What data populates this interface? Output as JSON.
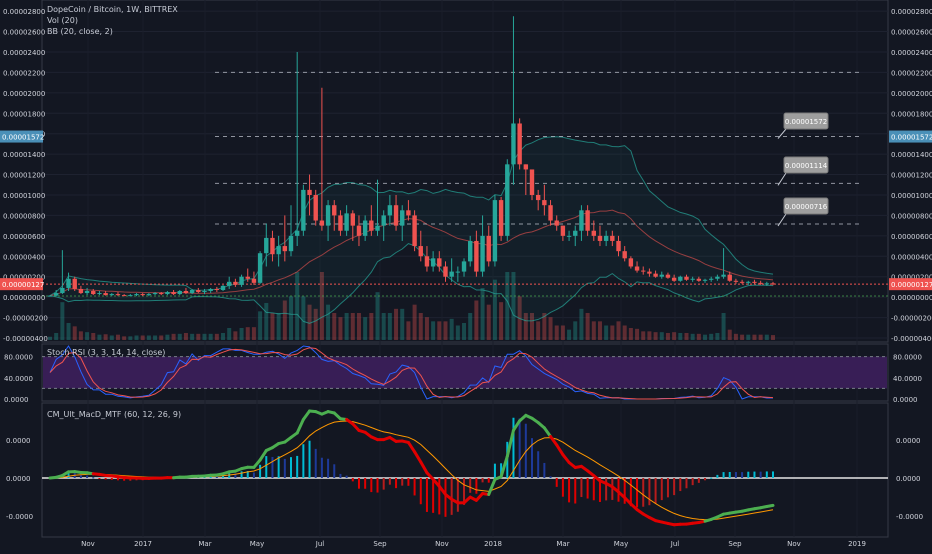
{
  "header": {
    "symbol_title": "DopeCoin / Bitcoin, 1W, BITTREX",
    "vol_label": "Vol (20)",
    "bb_label": "BB (20, close, 2)"
  },
  "stoch_label": "Stoch RSI (3, 3, 14, 14, close)",
  "macd_label": "CM_Ult_MacD_MTF (60, 12, 26, 9)",
  "price_axis": {
    "ticks": [
      "0.00002800",
      "0.00002600",
      "0.00002400",
      "0.00002200",
      "0.00002000",
      "0.00001800",
      "0.00001600",
      "0.00001400",
      "0.00001200",
      "0.00001000",
      "0.00000800",
      "0.00000600",
      "0.00000400",
      "0.00000200",
      "0.00000000",
      "-0.00000200",
      "-0.00000400"
    ],
    "tick_values": [
      2.8e-05,
      2.6e-05,
      2.4e-05,
      2.2e-05,
      2e-05,
      1.8e-05,
      1.6e-05,
      1.4e-05,
      1.2e-05,
      1e-05,
      8e-06,
      6e-06,
      4e-06,
      2e-06,
      0,
      -2e-06,
      -4e-06
    ],
    "marker_label": "0.00001572",
    "marker_value": 1.572e-05,
    "last_label": "0.00000127",
    "last_value": 1.27e-06
  },
  "stoch_axis": {
    "ticks": [
      "80.0000",
      "40.0000",
      "0.0000"
    ],
    "tick_values": [
      80,
      40,
      0
    ]
  },
  "macd_axis": {
    "ticks": [
      "0.0000",
      "0.0000",
      "-0.0000"
    ]
  },
  "time_axis": {
    "labels": [
      "Nov",
      "2017",
      "Mar",
      "May",
      "Jul",
      "Sep",
      "Nov",
      "2018",
      "Mar",
      "May",
      "Jul",
      "Sep",
      "Nov",
      "2019"
    ]
  },
  "annotations": [
    {
      "label": "0.00001572",
      "value": 1.572e-05
    },
    {
      "label": "0.00001114",
      "value": 1.114e-05
    },
    {
      "label": "0.00000716",
      "value": 7.16e-06
    }
  ],
  "colors": {
    "up": "#26a69a",
    "down": "#ef5350",
    "bb": "#26a69a",
    "stoch_k": "#2962ff",
    "stoch_d": "#ef5350",
    "macd_up": "#4caf50",
    "macd_down": "#e00000",
    "signal": "#ff9800",
    "marker": "#4a90b8",
    "last": "#ef5350"
  },
  "chart_data": {
    "type": "candlestick",
    "title": "DopeCoin / Bitcoin, 1W, BITTREX",
    "x_range": [
      "2016-10",
      "2019-01"
    ],
    "ylim": [
      -4e-06,
      2.85e-05
    ],
    "series": [
      {
        "name": "DopeCoin / Bitcoin",
        "ohlc": [
          [
            1e-07,
            2e-07,
            5e-08,
            1.5e-07
          ],
          [
            1.5e-07,
            7e-07,
            1e-07,
            4e-07
          ],
          [
            4e-07,
            4.6e-06,
            3e-07,
            9e-07
          ],
          [
            9e-07,
            2.4e-06,
            6e-07,
            1.8e-06
          ],
          [
            1.8e-06,
            2e-06,
            6e-07,
            8e-07
          ],
          [
            8e-07,
            1.1e-06,
            3e-07,
            4e-07
          ],
          [
            4e-07,
            9e-07,
            2e-07,
            6e-07
          ],
          [
            6e-07,
            8e-07,
            2e-07,
            3e-07
          ],
          [
            3e-07,
            6e-07,
            2e-07,
            4e-07
          ],
          [
            4e-07,
            6e-07,
            1.5e-07,
            2e-07
          ],
          [
            2e-07,
            4e-07,
            1e-07,
            3e-07
          ],
          [
            3e-07,
            5e-07,
            1e-07,
            2e-07
          ],
          [
            2e-07,
            3e-07,
            1e-07,
            1.5e-07
          ],
          [
            1.5e-07,
            3e-07,
            1e-07,
            2e-07
          ],
          [
            2e-07,
            4e-07,
            1e-07,
            3e-07
          ],
          [
            3e-07,
            4e-07,
            1e-07,
            2e-07
          ],
          [
            2e-07,
            4e-07,
            1e-07,
            3e-07
          ],
          [
            3e-07,
            5e-07,
            2e-07,
            4e-07
          ],
          [
            4e-07,
            5e-07,
            2e-07,
            3e-07
          ],
          [
            3e-07,
            6e-07,
            2e-07,
            5e-07
          ],
          [
            5e-07,
            7e-07,
            2e-07,
            3e-07
          ],
          [
            3e-07,
            7e-07,
            2e-07,
            6e-07
          ],
          [
            6e-07,
            9e-07,
            3e-07,
            4e-07
          ],
          [
            4e-07,
            8e-07,
            3e-07,
            7e-07
          ],
          [
            7e-07,
            9e-07,
            4e-07,
            5e-07
          ],
          [
            5e-07,
            8e-07,
            3e-07,
            6e-07
          ],
          [
            6e-07,
            9e-07,
            4e-07,
            8e-07
          ],
          [
            8e-07,
            1e-06,
            5e-07,
            7e-07
          ],
          [
            7e-07,
            1.2e-06,
            6e-07,
            1.1e-06
          ],
          [
            1.1e-06,
            2e-06,
            8e-07,
            1.5e-06
          ],
          [
            1.5e-06,
            1.8e-06,
            1e-06,
            1.2e-06
          ],
          [
            1.2e-06,
            2.2e-06,
            1e-06,
            2e-06
          ],
          [
            2e-06,
            2.8e-06,
            1.5e-06,
            1.8e-06
          ],
          [
            1.8e-06,
            2.5e-06,
            1.2e-06,
            1.4e-06
          ],
          [
            1.4e-06,
            4.5e-06,
            1.3e-06,
            4.3e-06
          ],
          [
            4.3e-06,
            7.2e-06,
            3e-06,
            5.8e-06
          ],
          [
            5.8e-06,
            6.5e-06,
            3.5e-06,
            4.2e-06
          ],
          [
            4.2e-06,
            6e-06,
            3e-06,
            5e-06
          ],
          [
            5e-06,
            8e-06,
            3.5e-06,
            4.5e-06
          ],
          [
            4.5e-06,
            9e-06,
            4e-06,
            6e-06
          ],
          [
            6e-06,
            2.4e-05,
            5e-06,
            6.5e-06
          ],
          [
            6.5e-06,
            1.1e-05,
            6e-06,
            1.05e-05
          ],
          [
            1.05e-05,
            1.2e-05,
            8e-06,
            1e-05
          ],
          [
            1e-05,
            1.05e-05,
            7e-06,
            7.5e-06
          ],
          [
            7.5e-06,
            2.05e-05,
            6.5e-06,
            7e-06
          ],
          [
            7e-06,
            9.5e-06,
            5.5e-06,
            9e-06
          ],
          [
            9e-06,
            9.5e-06,
            6.5e-06,
            8e-06
          ],
          [
            8e-06,
            8.5e-06,
            6e-06,
            6.5e-06
          ],
          [
            6.5e-06,
            9e-06,
            6e-06,
            8.2e-06
          ],
          [
            8.2e-06,
            8.5e-06,
            5.5e-06,
            7e-06
          ],
          [
            7e-06,
            8e-06,
            5e-06,
            6e-06
          ],
          [
            6e-06,
            8e-06,
            5.5e-06,
            7.5e-06
          ],
          [
            7.5e-06,
            9e-06,
            6e-06,
            6.5e-06
          ],
          [
            6.5e-06,
            1.15e-05,
            6e-06,
            7e-06
          ],
          [
            7e-06,
            8.5e-06,
            5.5e-06,
            8e-06
          ],
          [
            8e-06,
            1e-05,
            7e-06,
            9e-06
          ],
          [
            9e-06,
            1e-05,
            6.5e-06,
            7e-06
          ],
          [
            7e-06,
            9e-06,
            5.5e-06,
            8.5e-06
          ],
          [
            8.5e-06,
            9.5e-06,
            7.5e-06,
            8e-06
          ],
          [
            8e-06,
            8.5e-06,
            4.5e-06,
            5e-06
          ],
          [
            5e-06,
            6.5e-06,
            3.5e-06,
            4e-06
          ],
          [
            4e-06,
            5e-06,
            2.5e-06,
            3e-06
          ],
          [
            3e-06,
            4.5e-06,
            2.5e-06,
            3.8e-06
          ],
          [
            3.8e-06,
            4.5e-06,
            2.5e-06,
            3e-06
          ],
          [
            3e-06,
            3.5e-06,
            1.5e-06,
            2e-06
          ],
          [
            2e-06,
            3.8e-06,
            1.5e-06,
            2.5e-06
          ],
          [
            2.5e-06,
            3e-06,
            1.5e-06,
            2.5e-06
          ],
          [
            2.5e-06,
            3.8e-06,
            2e-06,
            3.5e-06
          ],
          [
            3.5e-06,
            6e-06,
            3e-06,
            5.5e-06
          ],
          [
            5.5e-06,
            6.5e-06,
            2e-06,
            2.5e-06
          ],
          [
            2.5e-06,
            8e-06,
            2e-06,
            6e-06
          ],
          [
            6e-06,
            7e-06,
            3e-06,
            3.5e-06
          ],
          [
            3.5e-06,
            1e-05,
            3e-06,
            9.5e-06
          ],
          [
            9.5e-06,
            9.8e-06,
            5.5e-06,
            6e-06
          ],
          [
            6e-06,
            1.35e-05,
            5.5e-06,
            1.3e-05
          ],
          [
            1.3e-05,
            2.75e-05,
            1.1e-05,
            1.7e-05
          ],
          [
            1.7e-05,
            1.75e-05,
            1.25e-05,
            1.3e-05
          ],
          [
            1.3e-05,
            1.3e-05,
            1e-05,
            1.25e-05
          ],
          [
            1.25e-05,
            1.25e-05,
            9.5e-06,
            1e-05
          ],
          [
            1e-05,
            1.05e-05,
            8.5e-06,
            9.5e-06
          ],
          [
            9.5e-06,
            1.1e-05,
            8e-06,
            9e-06
          ],
          [
            9e-06,
            9.5e-06,
            7e-06,
            7.5e-06
          ],
          [
            7.5e-06,
            8e-06,
            6.5e-06,
            7e-06
          ],
          [
            7e-06,
            7e-06,
            5.5e-06,
            6e-06
          ],
          [
            6e-06,
            6.5e-06,
            5.5e-06,
            6e-06
          ],
          [
            6e-06,
            7e-06,
            5e-06,
            6.5e-06
          ],
          [
            6.5e-06,
            9e-06,
            5.5e-06,
            8.5e-06
          ],
          [
            8.5e-06,
            9e-06,
            6e-06,
            6.5e-06
          ],
          [
            6.5e-06,
            7.5e-06,
            5.5e-06,
            6e-06
          ],
          [
            6e-06,
            7e-06,
            5e-06,
            5.5e-06
          ],
          [
            5.5e-06,
            6.5e-06,
            5e-06,
            6e-06
          ],
          [
            6e-06,
            6.5e-06,
            5e-06,
            5.5e-06
          ],
          [
            5.5e-06,
            6e-06,
            4e-06,
            4.5e-06
          ],
          [
            4.5e-06,
            5e-06,
            3.5e-06,
            3.8e-06
          ],
          [
            3.8e-06,
            4e-06,
            2.8e-06,
            3e-06
          ],
          [
            3e-06,
            3.5e-06,
            2.4e-06,
            2.6e-06
          ],
          [
            2.6e-06,
            3e-06,
            2.2e-06,
            2.5e-06
          ],
          [
            2.5e-06,
            2.8e-06,
            2e-06,
            2.3e-06
          ],
          [
            2.3e-06,
            2.6e-06,
            1.9e-06,
            2e-06
          ],
          [
            2e-06,
            2.5e-06,
            1.8e-06,
            2.2e-06
          ],
          [
            2.2e-06,
            2.4e-06,
            1.8e-06,
            1.9e-06
          ],
          [
            1.9e-06,
            2.2e-06,
            1.5e-06,
            1.6e-06
          ],
          [
            1.6e-06,
            2.1e-06,
            1.5e-06,
            2e-06
          ],
          [
            2e-06,
            2.2e-06,
            1.6e-06,
            1.7e-06
          ],
          [
            1.7e-06,
            2e-06,
            1.5e-06,
            1.8e-06
          ],
          [
            1.8e-06,
            2e-06,
            1.5e-06,
            1.6e-06
          ],
          [
            1.6e-06,
            1.8e-06,
            1.4e-06,
            1.7e-06
          ],
          [
            1.7e-06,
            2e-06,
            1.5e-06,
            1.8e-06
          ],
          [
            1.8e-06,
            2.2e-06,
            1.6e-06,
            2e-06
          ],
          [
            2e-06,
            4.8e-06,
            1.8e-06,
            2.2e-06
          ],
          [
            2.2e-06,
            2.5e-06,
            1.5e-06,
            1.6e-06
          ],
          [
            1.6e-06,
            1.8e-06,
            1.3e-06,
            1.5e-06
          ],
          [
            1.5e-06,
            1.7e-06,
            1.3e-06,
            1.4e-06
          ],
          [
            1.4e-06,
            1.6e-06,
            1.2e-06,
            1.5e-06
          ],
          [
            1.5e-06,
            1.7e-06,
            1.3e-06,
            1.4e-06
          ],
          [
            1.4e-06,
            1.6e-06,
            1.2e-06,
            1.3e-06
          ],
          [
            1.3e-06,
            1.5e-06,
            1.1e-06,
            1.35e-06
          ],
          [
            1.35e-06,
            1.5e-06,
            1.15e-06,
            1.27e-06
          ]
        ]
      }
    ],
    "horizontal_lines": [
      2.2e-05,
      1.572e-05,
      1.114e-05,
      7.16e-06,
      1.27e-06
    ],
    "panes": [
      "price",
      "stoch_rsi",
      "macd"
    ],
    "grid": true
  }
}
